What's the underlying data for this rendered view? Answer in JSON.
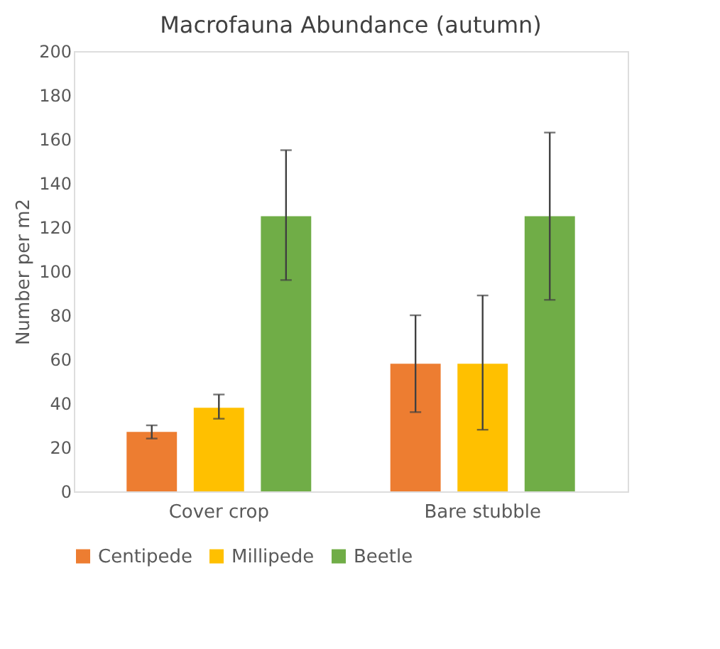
{
  "chart_data": {
    "type": "bar",
    "title": "Macrofauna Abundance (autumn)",
    "ylabel": "Number per m2",
    "categories": [
      "Cover crop",
      "Bare stubble"
    ],
    "series": [
      {
        "name": "Centipede",
        "color": "#ed7d31",
        "values": [
          27,
          58
        ],
        "errors": [
          3,
          [
            36,
            80
          ]
        ]
      },
      {
        "name": "Millipede",
        "color": "#ffc000",
        "values": [
          38,
          58
        ],
        "errors": [
          [
            33,
            44
          ],
          [
            28,
            89
          ]
        ]
      },
      {
        "name": "Beetle",
        "color": "#70ad47",
        "values": [
          125,
          125
        ],
        "errors": [
          [
            96,
            155
          ],
          [
            87,
            163
          ]
        ]
      }
    ],
    "ylim": [
      0,
      200
    ],
    "yticks": [
      0,
      20,
      40,
      60,
      80,
      100,
      120,
      140,
      160,
      180,
      200
    ],
    "grid": false,
    "legend": "bottom"
  }
}
